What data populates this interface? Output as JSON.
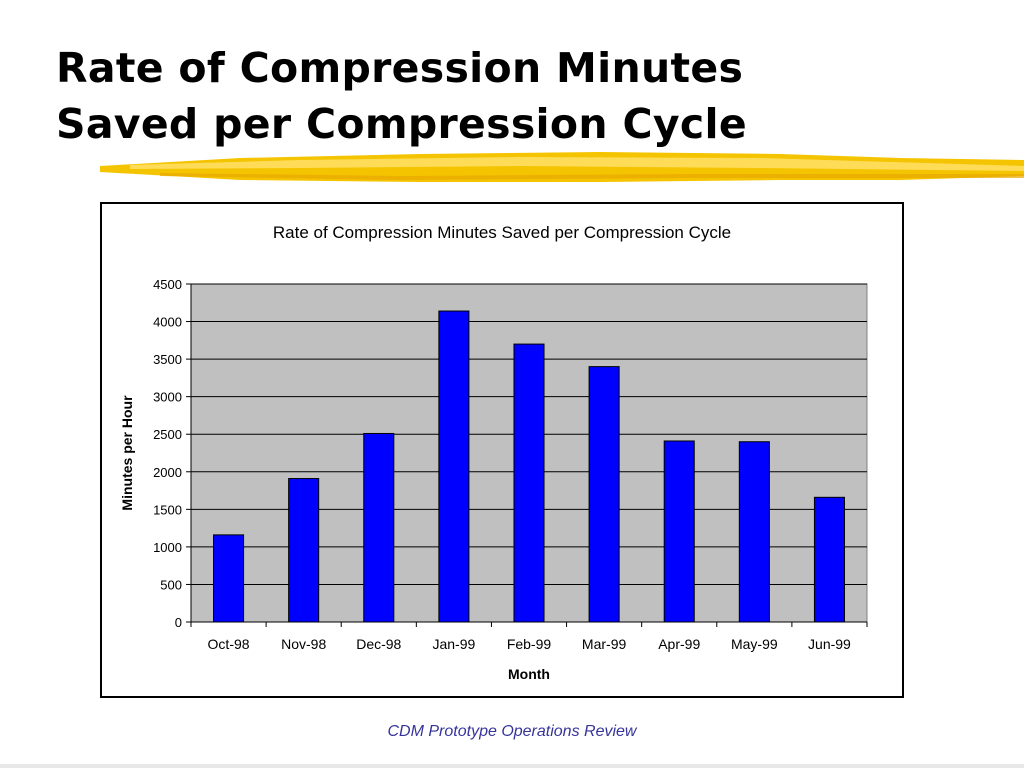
{
  "slide": {
    "title_lines": [
      "Rate of Compression Minutes",
      "Saved per Compression Cycle"
    ],
    "footer": "CDM Prototype Operations Review"
  },
  "colors": {
    "bar_fill": "#0000ff",
    "plot_background": "#c0c0c0",
    "highlighter": "#f5c400",
    "footer_text": "#36349a"
  },
  "chart_data": {
    "type": "bar",
    "title": "Rate of Compression Minutes Saved per Compression Cycle",
    "xlabel": "Month",
    "ylabel": "Minutes per Hour",
    "categories": [
      "Oct-98",
      "Nov-98",
      "Dec-98",
      "Jan-99",
      "Feb-99",
      "Mar-99",
      "Apr-99",
      "May-99",
      "Jun-99"
    ],
    "values": [
      1160,
      1910,
      2510,
      4140,
      3700,
      3400,
      2410,
      2400,
      1660
    ],
    "ylim": [
      0,
      4500
    ],
    "yticks": [
      0,
      500,
      1000,
      1500,
      2000,
      2500,
      3000,
      3500,
      4000,
      4500
    ],
    "grid": true,
    "legend": "none"
  }
}
